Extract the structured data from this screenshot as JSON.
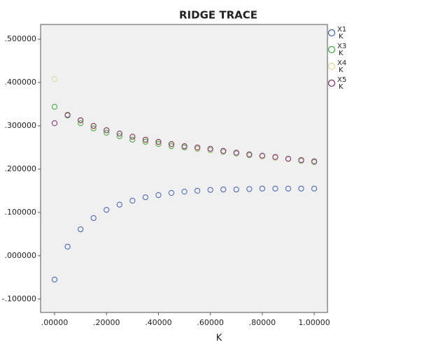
{
  "chart_data": {
    "type": "scatter",
    "title": "RIDGE TRACE",
    "x_label": "K",
    "x": [
      0,
      0.05,
      0.1,
      0.15,
      0.2,
      0.25,
      0.3,
      0.35,
      0.4,
      0.45,
      0.5,
      0.55,
      0.6,
      0.65,
      0.7,
      0.75,
      0.8,
      0.85,
      0.9,
      0.95,
      1.0
    ],
    "series": [
      {
        "name": "X1",
        "color": "#4060b8",
        "values": [
          -0.055,
          0.021,
          0.061,
          0.087,
          0.106,
          0.118,
          0.127,
          0.135,
          0.14,
          0.145,
          0.148,
          0.15,
          0.152,
          0.153,
          0.153,
          0.154,
          0.155,
          0.155,
          0.155,
          0.155,
          0.155
        ]
      },
      {
        "name": "X3",
        "color": "#3aaa3a",
        "values": [
          0.344,
          0.324,
          0.306,
          0.294,
          0.284,
          0.276,
          0.268,
          0.263,
          0.258,
          0.253,
          0.25,
          0.247,
          0.244,
          0.24,
          0.236,
          0.232,
          0.229,
          0.226,
          0.223,
          0.219,
          0.216
        ]
      },
      {
        "name": "X4",
        "color": "#ddd89c",
        "values": [
          0.408,
          0.326,
          0.311,
          0.298,
          0.289,
          0.281,
          0.273,
          0.266,
          0.261,
          0.256,
          0.252,
          0.248,
          0.245,
          0.241,
          0.237,
          0.233,
          0.229,
          0.226,
          0.223,
          0.22,
          0.217
        ]
      },
      {
        "name": "X5",
        "color": "#7a2a70",
        "values": [
          0.306,
          0.325,
          0.313,
          0.3,
          0.29,
          0.282,
          0.275,
          0.268,
          0.263,
          0.258,
          0.253,
          0.25,
          0.247,
          0.242,
          0.238,
          0.234,
          0.231,
          0.228,
          0.224,
          0.221,
          0.218
        ]
      }
    ],
    "xlim": [
      -0.054,
      1.051
    ],
    "ylim": [
      -0.131,
      0.534
    ],
    "xticks": [
      {
        "value": 0,
        "label": ".00000"
      },
      {
        "value": 0.2,
        "label": ".20000"
      },
      {
        "value": 0.4,
        "label": ".40000"
      },
      {
        "value": 0.6,
        "label": ".60000"
      },
      {
        "value": 0.8,
        "label": ".80000"
      },
      {
        "value": 1.0,
        "label": "1.00000"
      }
    ],
    "yticks": [
      {
        "value": -0.1,
        "label": "-.100000"
      },
      {
        "value": 0,
        "label": ".000000"
      },
      {
        "value": 0.1,
        "label": ".100000"
      },
      {
        "value": 0.2,
        "label": ".200000"
      },
      {
        "value": 0.3,
        "label": ".300000"
      },
      {
        "value": 0.4,
        "label": ".400000"
      },
      {
        "value": 0.5,
        "label": ".500000"
      }
    ],
    "grid": false,
    "legend": "right"
  }
}
